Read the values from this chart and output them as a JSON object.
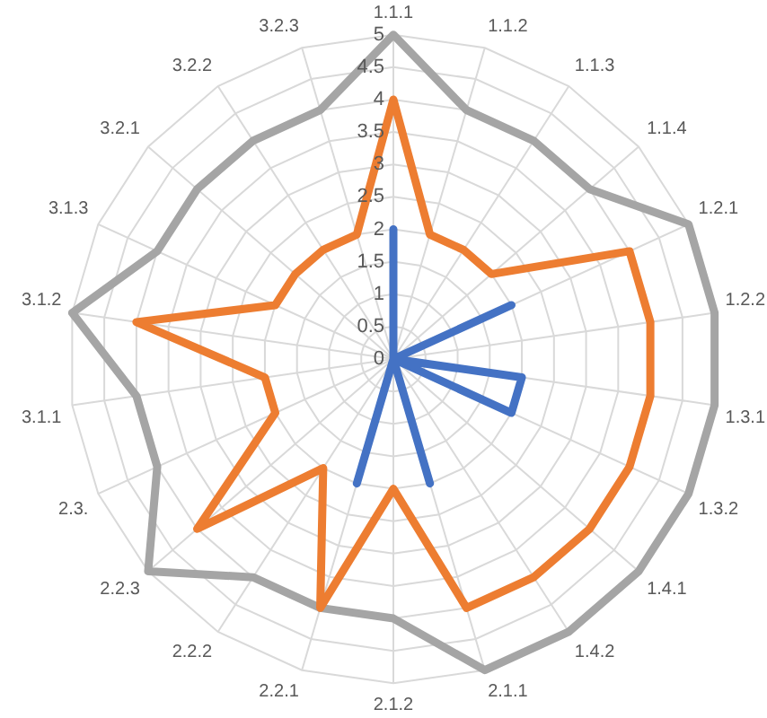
{
  "chart_data": {
    "type": "radar",
    "categories": [
      "1.1.1",
      "1.1.2",
      "1.1.3",
      "1.1.4",
      "1.2.1",
      "1.2.2",
      "1.3.1",
      "1.3.2",
      "1.4.1",
      "1.4.2",
      "2.1.1",
      "2.1.2",
      "2.2.1",
      "2.2.2",
      "2.2.3",
      "2.3.",
      "3.1.1",
      "3.1.2",
      "3.1.3",
      "3.2.1",
      "3.2.2",
      "3.2.3"
    ],
    "series": [
      {
        "color": "#4472c4",
        "values": [
          2,
          0,
          0,
          0,
          2,
          0,
          2,
          2,
          0,
          0,
          2,
          0,
          2,
          0,
          0,
          0,
          0,
          0,
          0,
          0,
          0,
          0
        ]
      },
      {
        "color": "#ed7d31",
        "values": [
          4,
          2,
          2,
          2,
          4,
          4,
          4,
          4,
          4,
          4,
          4,
          2,
          4,
          2,
          4,
          2,
          2,
          4,
          2,
          2,
          2,
          2
        ]
      },
      {
        "color": "#a5a5a5",
        "values": [
          5,
          4,
          4,
          4,
          5,
          5,
          5,
          5,
          5,
          5,
          5,
          4,
          4,
          4,
          5,
          4,
          4,
          5,
          4,
          4,
          4,
          4
        ]
      }
    ],
    "ylim": [
      0,
      5
    ],
    "yticks": [
      0,
      0.5,
      1,
      1.5,
      2,
      2.5,
      3,
      3.5,
      4,
      4.5,
      5
    ],
    "grid": true,
    "legend": false,
    "marker": "none",
    "line_style": "solid"
  }
}
